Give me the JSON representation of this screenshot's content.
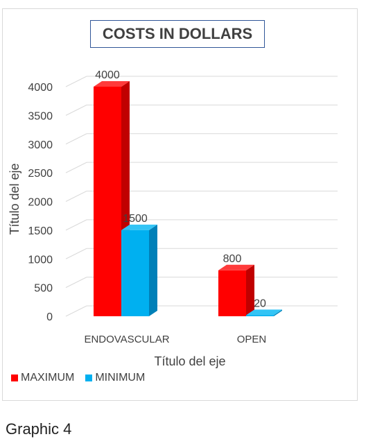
{
  "chart_data": {
    "type": "bar",
    "title": "COSTS IN DOLLARS",
    "xlabel": "Título del eje",
    "ylabel": "Título del eje",
    "categories": [
      "ENDOVASCULAR",
      "OPEN"
    ],
    "series": [
      {
        "name": "MAXIMUM",
        "values": [
          4000,
          800
        ],
        "color": "#ff0000",
        "side_color": "#c00000",
        "top_color": "#ff3b3b"
      },
      {
        "name": "MINIMUM",
        "values": [
          1500,
          20
        ],
        "color": "#00b0f0",
        "side_color": "#0080b8",
        "top_color": "#33c4f5"
      }
    ],
    "ylim": [
      0,
      4000
    ],
    "yticks": [
      "0",
      "500",
      "1000",
      "1500",
      "2000",
      "2500",
      "3000",
      "3500",
      "4000"
    ],
    "grid": true,
    "legend_position": "bottom-left",
    "style": "3d-clustered-column"
  },
  "caption": "Graphic 4"
}
